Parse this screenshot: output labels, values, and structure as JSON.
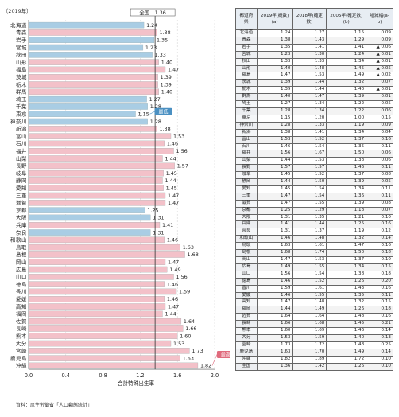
{
  "chart_data": {
    "type": "bar",
    "orientation": "horizontal",
    "year_tag": "〔2019年〕",
    "xlabel": "合計特殊出生率",
    "xlim": [
      0.0,
      2.0
    ],
    "x_ticks": [
      "0.0",
      "0.4",
      "0.8",
      "1.2",
      "1.6",
      "2.0"
    ],
    "national_label": "全国　1.36",
    "national_value": 1.36,
    "min_label": "最低",
    "max_label": "最高",
    "categories": [
      "北海道",
      "青森",
      "岩手",
      "宮城",
      "秋田",
      "山形",
      "福島",
      "茨城",
      "栃木",
      "群馬",
      "埼玉",
      "千葉",
      "東京",
      "神奈川",
      "新潟",
      "富山",
      "石川",
      "福井",
      "山梨",
      "長野",
      "岐阜",
      "静岡",
      "愛知",
      "三重",
      "滋賀",
      "京都",
      "大阪",
      "兵庫",
      "奈良",
      "和歌山",
      "鳥取",
      "島根",
      "岡山",
      "広島",
      "山口",
      "徳島",
      "香川",
      "愛媛",
      "高知",
      "福岡",
      "佐賀",
      "長崎",
      "熊本",
      "大分",
      "宮崎",
      "鹿児島",
      "沖縄"
    ],
    "values": [
      1.24,
      1.38,
      1.35,
      1.23,
      1.33,
      1.4,
      1.47,
      1.39,
      1.39,
      1.4,
      1.27,
      1.28,
      1.15,
      1.28,
      1.38,
      1.53,
      1.46,
      1.56,
      1.44,
      1.57,
      1.45,
      1.44,
      1.45,
      1.47,
      1.47,
      1.25,
      1.31,
      1.41,
      1.31,
      1.46,
      1.63,
      1.68,
      1.47,
      1.49,
      1.56,
      1.46,
      1.59,
      1.46,
      1.47,
      1.44,
      1.64,
      1.66,
      1.6,
      1.53,
      1.73,
      1.63,
      1.82
    ],
    "colors": {
      "below": "#a9cde4",
      "above": "#f3c1c9",
      "national_line": "#333333",
      "callout_min": "#4a90c2",
      "callout_max": "#e06b7d"
    }
  },
  "table": {
    "headers": [
      "都道府県",
      "2019年(概数)(a)",
      "2018年(確定数)",
      "2005年(確定数)(b)",
      "増減幅(a-b)"
    ],
    "rows": [
      [
        "北海道",
        "1.24",
        "1.27",
        "1.15",
        "0.09"
      ],
      [
        "青森",
        "1.38",
        "1.43",
        "1.29",
        "0.09"
      ],
      [
        "岩手",
        "1.35",
        "1.41",
        "1.41",
        "▲ 0.06"
      ],
      [
        "宮城",
        "1.23",
        "1.30",
        "1.24",
        "▲ 0.01"
      ],
      [
        "秋田",
        "1.33",
        "1.33",
        "1.34",
        "▲ 0.01"
      ],
      [
        "山形",
        "1.40",
        "1.48",
        "1.45",
        "▲ 0.05"
      ],
      [
        "福島",
        "1.47",
        "1.53",
        "1.49",
        "▲ 0.02"
      ],
      [
        "茨城",
        "1.39",
        "1.44",
        "1.32",
        "0.07"
      ],
      [
        "栃木",
        "1.39",
        "1.44",
        "1.40",
        "▲ 0.01"
      ],
      [
        "群馬",
        "1.40",
        "1.47",
        "1.39",
        "0.01"
      ],
      [
        "埼玉",
        "1.27",
        "1.34",
        "1.22",
        "0.05"
      ],
      [
        "千葉",
        "1.28",
        "1.34",
        "1.22",
        "0.06"
      ],
      [
        "東京",
        "1.15",
        "1.20",
        "1.00",
        "0.15"
      ],
      [
        "神奈川",
        "1.28",
        "1.33",
        "1.19",
        "0.09"
      ],
      [
        "新潟",
        "1.38",
        "1.41",
        "1.34",
        "0.04"
      ],
      [
        "富山",
        "1.53",
        "1.52",
        "1.37",
        "0.16"
      ],
      [
        "石川",
        "1.46",
        "1.54",
        "1.35",
        "0.11"
      ],
      [
        "福井",
        "1.56",
        "1.67",
        "1.50",
        "0.06"
      ],
      [
        "山梨",
        "1.44",
        "1.53",
        "1.38",
        "0.06"
      ],
      [
        "長野",
        "1.57",
        "1.57",
        "1.46",
        "0.11"
      ],
      [
        "岐阜",
        "1.45",
        "1.52",
        "1.37",
        "0.08"
      ],
      [
        "静岡",
        "1.44",
        "1.50",
        "1.39",
        "0.05"
      ],
      [
        "愛知",
        "1.45",
        "1.54",
        "1.34",
        "0.11"
      ],
      [
        "三重",
        "1.47",
        "1.54",
        "1.36",
        "0.11"
      ],
      [
        "滋賀",
        "1.47",
        "1.55",
        "1.39",
        "0.08"
      ],
      [
        "京都",
        "1.25",
        "1.29",
        "1.18",
        "0.07"
      ],
      [
        "大阪",
        "1.31",
        "1.35",
        "1.21",
        "0.10"
      ],
      [
        "兵庫",
        "1.41",
        "1.44",
        "1.25",
        "0.16"
      ],
      [
        "奈良",
        "1.31",
        "1.37",
        "1.19",
        "0.12"
      ],
      [
        "和歌山",
        "1.46",
        "1.48",
        "1.32",
        "0.14"
      ],
      [
        "鳥取",
        "1.63",
        "1.61",
        "1.47",
        "0.16"
      ],
      [
        "島根",
        "1.68",
        "1.74",
        "1.50",
        "0.18"
      ],
      [
        "岡山",
        "1.47",
        "1.53",
        "1.37",
        "0.10"
      ],
      [
        "広島",
        "1.49",
        "1.55",
        "1.34",
        "0.15"
      ],
      [
        "山口",
        "1.56",
        "1.54",
        "1.38",
        "0.18"
      ],
      [
        "徳島",
        "1.46",
        "1.52",
        "1.26",
        "0.20"
      ],
      [
        "香川",
        "1.59",
        "1.61",
        "1.43",
        "0.16"
      ],
      [
        "愛媛",
        "1.46",
        "1.55",
        "1.35",
        "0.11"
      ],
      [
        "高知",
        "1.47",
        "1.48",
        "1.32",
        "0.15"
      ],
      [
        "福岡",
        "1.44",
        "1.49",
        "1.26",
        "0.18"
      ],
      [
        "佐賀",
        "1.64",
        "1.64",
        "1.48",
        "0.16"
      ],
      [
        "長崎",
        "1.66",
        "1.68",
        "1.45",
        "0.21"
      ],
      [
        "熊本",
        "1.60",
        "1.69",
        "1.46",
        "0.14"
      ],
      [
        "大分",
        "1.53",
        "1.59",
        "1.40",
        "0.13"
      ],
      [
        "宮崎",
        "1.73",
        "1.72",
        "1.48",
        "0.25"
      ],
      [
        "鹿児島",
        "1.63",
        "1.70",
        "1.49",
        "0.14"
      ],
      [
        "沖縄",
        "1.82",
        "1.89",
        "1.72",
        "0.10"
      ],
      [
        "全国",
        "1.36",
        "1.42",
        "1.26",
        "0.10"
      ]
    ]
  },
  "source": "資料：厚生労働省「人口動態統計」"
}
